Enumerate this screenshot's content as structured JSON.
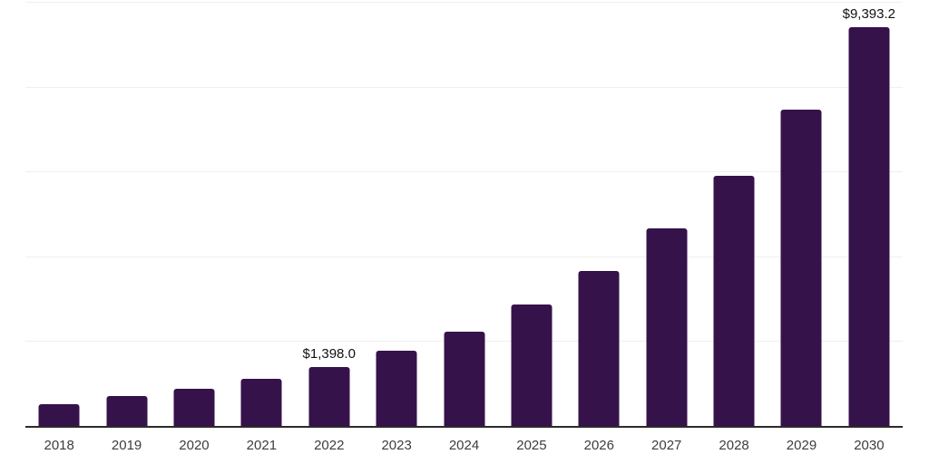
{
  "page": {
    "background_color": "#ffffff"
  },
  "chart_data": {
    "type": "bar",
    "title": "",
    "xlabel": "",
    "ylabel": "",
    "categories": [
      "2018",
      "2019",
      "2020",
      "2021",
      "2022",
      "2023",
      "2024",
      "2025",
      "2026",
      "2027",
      "2028",
      "2029",
      "2030"
    ],
    "values": [
      510,
      700,
      885,
      1110,
      1398.0,
      1775,
      2230,
      2870,
      3655,
      4650,
      5900,
      7465,
      9393.2
    ],
    "data_labels": [
      "",
      "",
      "",
      "",
      "$1,398.0",
      "",
      "",
      "",
      "",
      "",
      "",
      "",
      "$9,393.2"
    ],
    "ylim": [
      0,
      10000
    ],
    "gridline_values": [
      2000,
      4000,
      6000,
      8000,
      10000
    ],
    "y_tick_labels_visible": false,
    "grid": "horizontal",
    "legend": "none",
    "bar_color": "#36124b",
    "axis_line_color": "#2b2b2b",
    "gridline_color": "#f0f0f0",
    "category_label_color": "#3d3d3d",
    "data_label_color": "#111111"
  }
}
